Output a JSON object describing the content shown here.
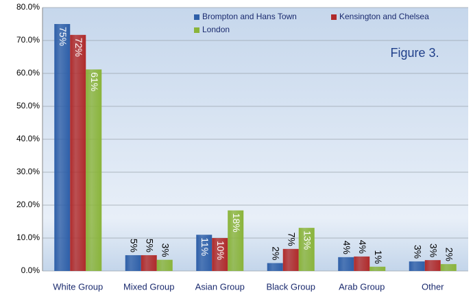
{
  "chart_data": {
    "type": "bar",
    "annotation": "Figure 3.",
    "categories": [
      "White Group",
      "Mixed Group",
      "Asian Group",
      "Black Group",
      "Arab Group",
      "Other"
    ],
    "series": [
      {
        "name": "Brompton and Hans Town",
        "color": "#2e5fa8",
        "values": [
          75,
          4.8,
          11,
          2.4,
          4.2,
          2.9
        ],
        "value_labels": [
          "75%",
          "5%",
          "11%",
          "2%",
          "4%",
          "3%"
        ]
      },
      {
        "name": "Kensington and Chelsea",
        "color": "#b02a2a",
        "values": [
          71.7,
          4.8,
          10,
          6.7,
          4.4,
          3.3
        ],
        "value_labels": [
          "72%",
          "5%",
          "10%",
          "7%",
          "4%",
          "3%"
        ]
      },
      {
        "name": "London",
        "color": "#8ab43a",
        "values": [
          61.2,
          3.4,
          18.4,
          13.1,
          1.3,
          2.1
        ],
        "value_labels": [
          "61%",
          "3%",
          "18%",
          "13%",
          "1%",
          "2%"
        ]
      }
    ],
    "ylim": [
      0,
      80
    ],
    "yticks": [
      {
        "value": 0,
        "label": "0.0%"
      },
      {
        "value": 10,
        "label": "10.0%"
      },
      {
        "value": 20,
        "label": "20.0%"
      },
      {
        "value": 30,
        "label": "30.0%"
      },
      {
        "value": 40,
        "label": "40.0%"
      },
      {
        "value": 50,
        "label": "50.0%"
      },
      {
        "value": 60,
        "label": "60.0%"
      },
      {
        "value": 70,
        "label": "70.0%"
      },
      {
        "value": 80,
        "label": "80.0%"
      }
    ],
    "grid": true,
    "legend": "top"
  }
}
